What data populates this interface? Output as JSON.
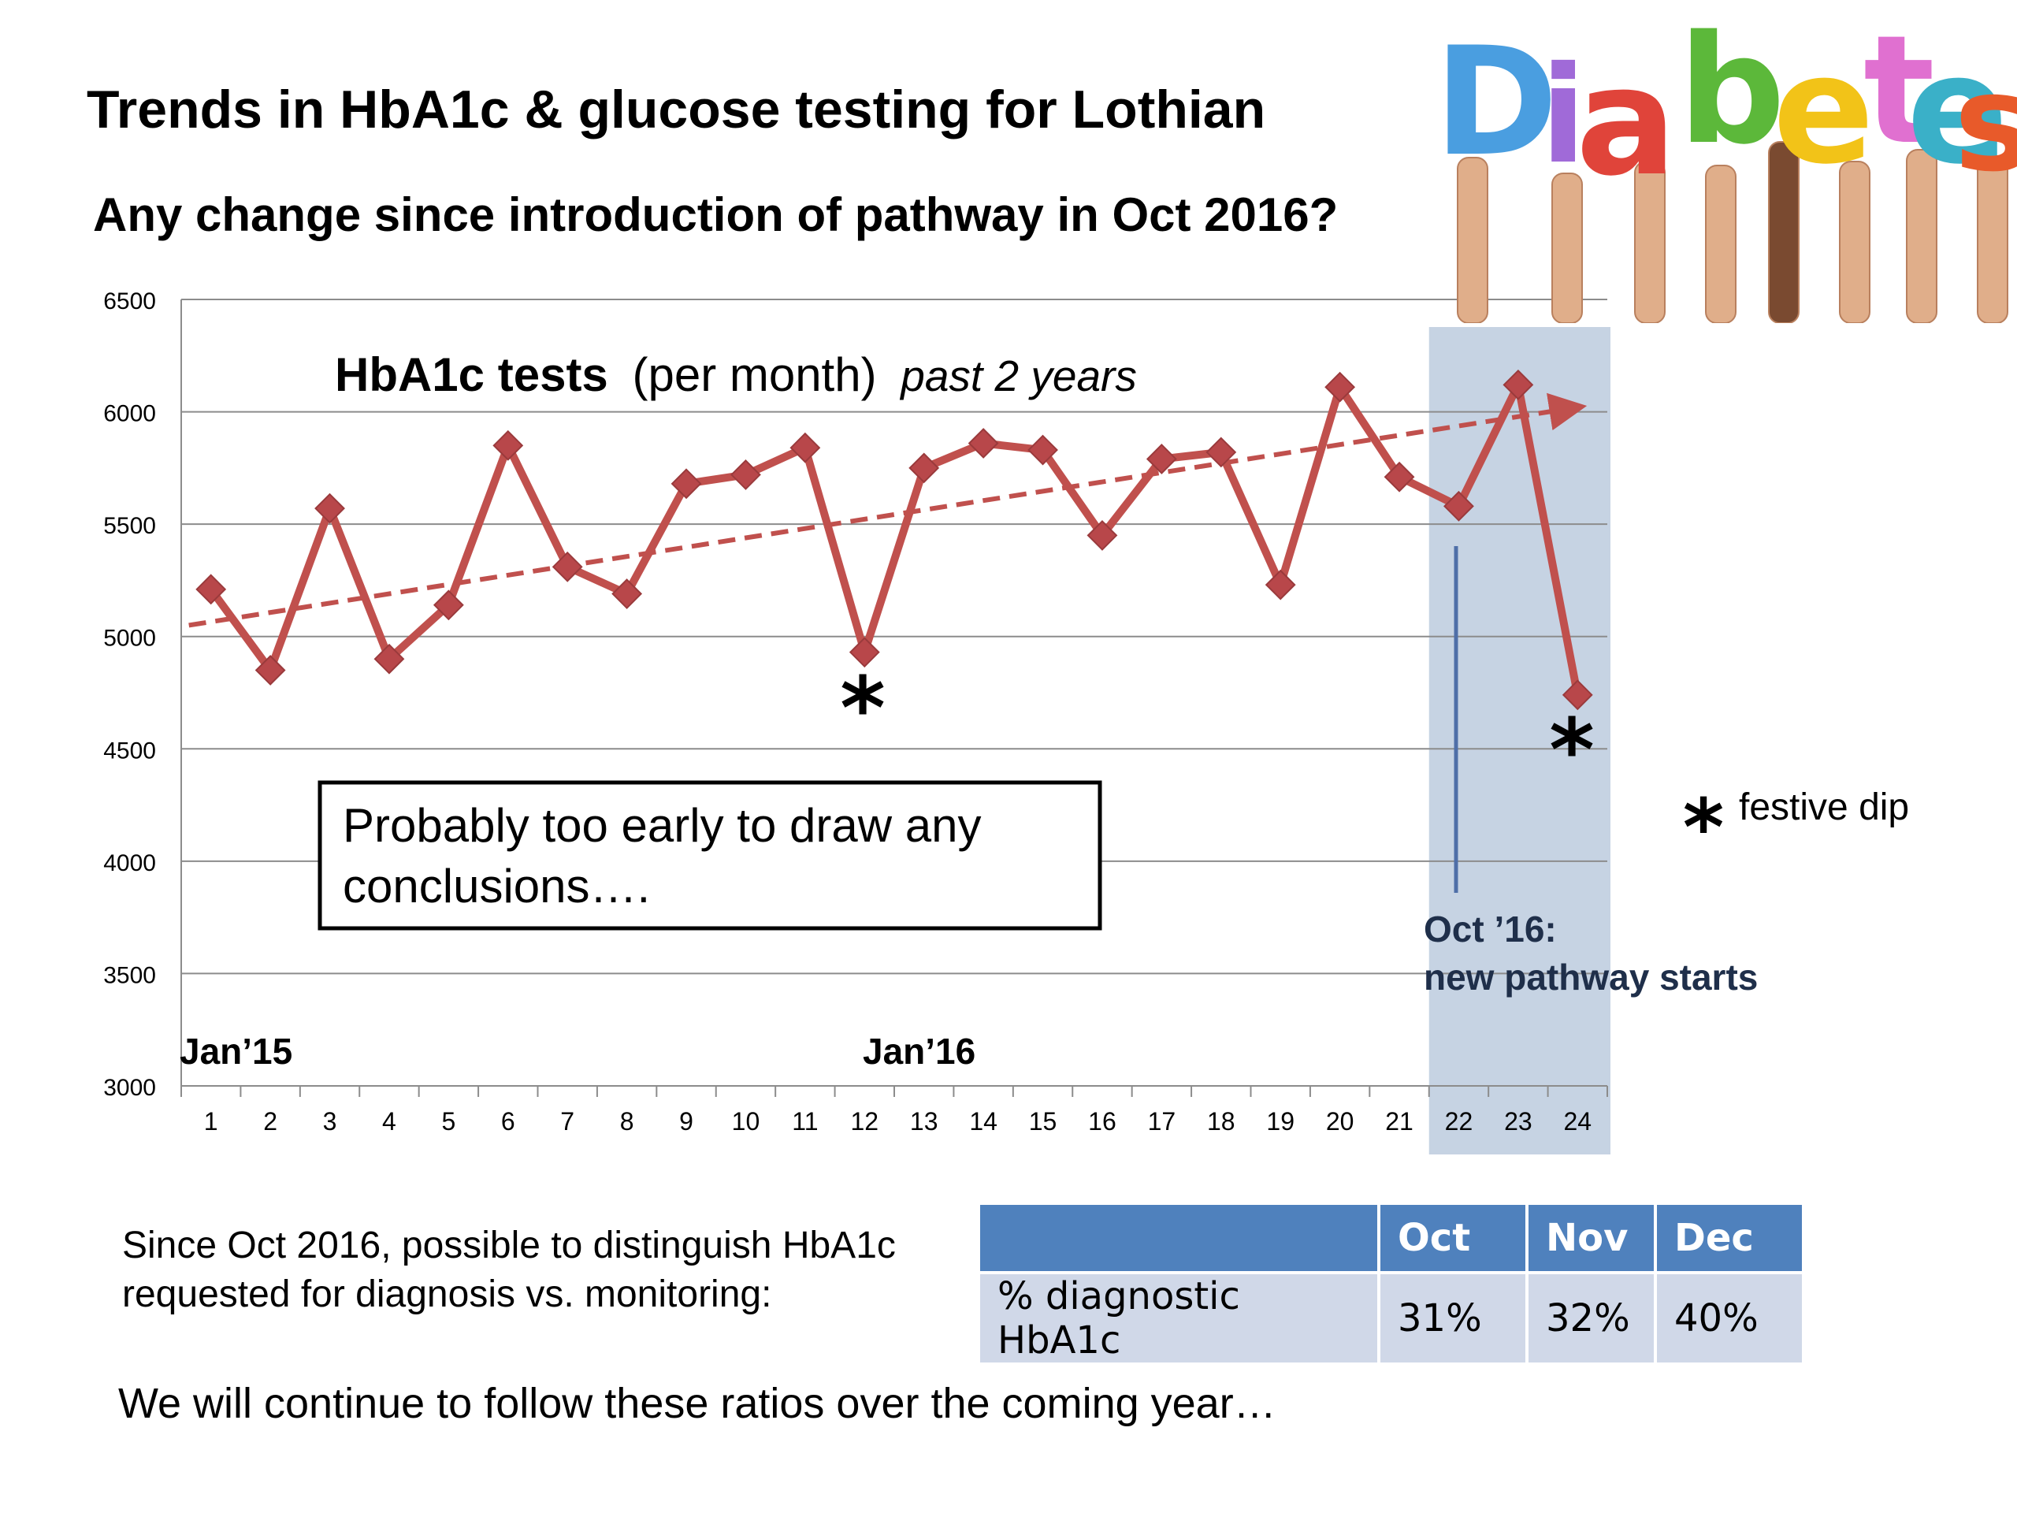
{
  "slide": {
    "title": "Trends in HbA1c & glucose testing for Lothian",
    "subtitle": "Any change since introduction of pathway in Oct 2016?",
    "logo_text": "Diabetes",
    "description_lines": [
      "Since Oct 2016, possible to distinguish HbA1c",
      "requested for diagnosis vs. monitoring:"
    ],
    "closing": "We will continue to follow these ratios over the coming year…"
  },
  "table": {
    "headers": [
      "",
      "Oct",
      "Nov",
      "Dec"
    ],
    "rows": [
      [
        "% diagnostic HbA1c",
        "31%",
        "32%",
        "40%"
      ]
    ]
  },
  "chart_data": {
    "type": "line",
    "title_bold": "HbA1c tests",
    "title_normal": "(per month)",
    "title_italic": "past 2 years",
    "x": [
      1,
      2,
      3,
      4,
      5,
      6,
      7,
      8,
      9,
      10,
      11,
      12,
      13,
      14,
      15,
      16,
      17,
      18,
      19,
      20,
      21,
      22,
      23,
      24
    ],
    "series": [
      {
        "values": [
          5210,
          4850,
          5570,
          4900,
          5140,
          5850,
          5310,
          5190,
          5680,
          5720,
          5840,
          4930,
          5750,
          5860,
          5830,
          5450,
          5790,
          5820,
          5230,
          6110,
          5710,
          5580,
          6120,
          4740
        ]
      }
    ],
    "trendline": {
      "from": [
        1,
        5050
      ],
      "to": [
        24,
        6020
      ],
      "style": "dashed-arrow"
    },
    "ylim": [
      3000,
      6500
    ],
    "yticks": [
      3000,
      3500,
      4000,
      4500,
      5000,
      5500,
      6000,
      6500
    ],
    "grid": true,
    "color": "#c0504d",
    "highlight_region": {
      "from": 22,
      "to": 24,
      "color": "#c6d3e3"
    },
    "annotations": {
      "jan15": "Jan’15",
      "jan16": "Jan’16",
      "pathway_line1": "Oct ’16:",
      "pathway_line2": "new pathway starts",
      "asterisk": "*",
      "festive_dip": "festive dip",
      "note_line1": "Probably too early to draw any",
      "note_line2": "conclusions…."
    },
    "asterisk_points": [
      12,
      24
    ]
  }
}
